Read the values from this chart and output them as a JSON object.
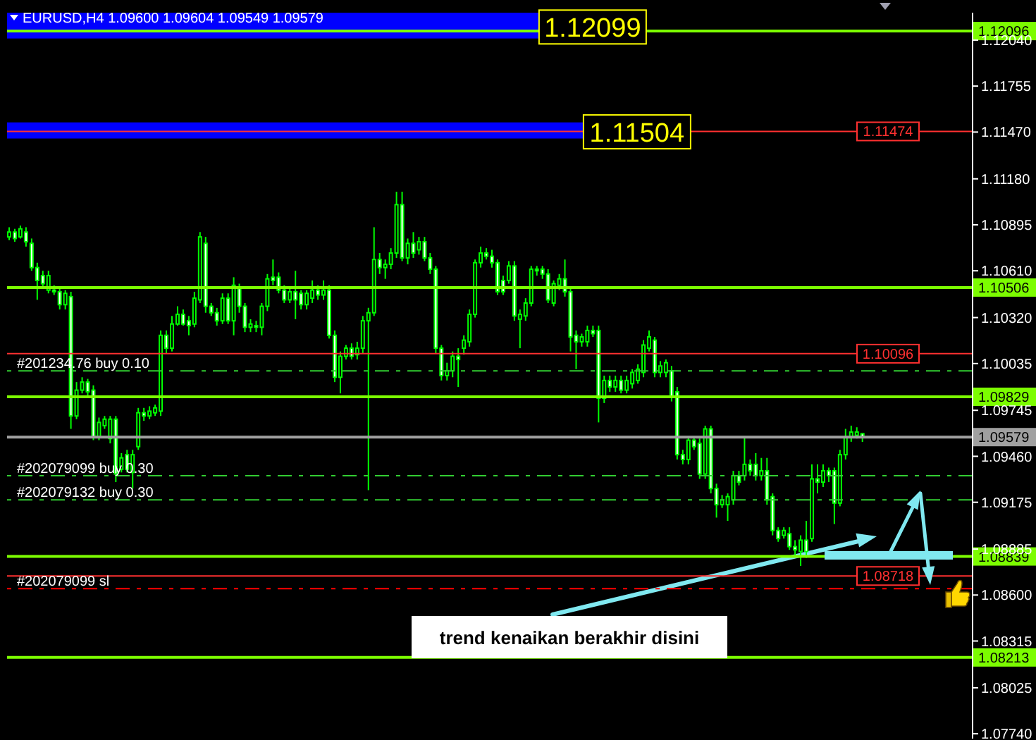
{
  "chart_data": {
    "type": "candlestick",
    "title": "EURUSD,H4 1.09600 1.09604 1.09549 1.09579",
    "annotations": [
      "trend kenaikan berakhir disini"
    ],
    "categories": [
      null,
      null,
      null,
      null,
      null,
      null,
      null,
      null,
      null,
      null,
      null,
      null,
      null,
      null,
      null,
      null,
      null,
      null,
      null,
      null,
      null,
      null,
      null,
      null,
      null,
      null,
      null,
      null,
      null,
      null,
      null,
      null,
      null,
      null,
      null,
      null,
      null,
      null,
      null,
      null,
      null,
      null,
      null,
      null,
      null,
      null,
      null,
      null,
      null,
      null,
      null,
      null,
      null,
      null,
      null,
      null,
      null,
      null,
      null,
      null,
      null,
      null,
      null,
      null,
      null,
      null,
      null,
      null,
      null,
      null,
      null,
      null,
      null,
      null,
      null,
      null,
      null,
      null,
      null,
      null,
      null,
      null,
      null,
      null,
      null,
      null,
      null,
      null,
      null,
      null,
      null,
      null,
      null,
      null,
      null,
      null,
      null,
      null,
      null,
      null,
      null,
      null,
      null,
      null,
      null,
      null,
      null,
      null,
      null,
      null,
      null,
      null,
      null,
      null,
      null,
      null,
      null,
      null,
      null,
      null,
      null,
      null,
      null,
      null,
      null,
      null,
      null,
      null,
      null,
      null,
      null,
      null,
      null,
      null,
      null,
      null,
      null,
      null,
      null,
      null,
      null,
      null,
      null,
      null,
      null,
      null,
      null,
      null,
      null,
      null,
      null,
      null,
      null,
      null,
      null,
      null,
      null,
      null,
      null,
      null,
      null,
      null,
      null,
      null,
      null,
      null,
      null,
      null,
      null,
      null,
      null,
      null
    ],
    "ohlc": [
      [
        1.1082,
        1.1088,
        1.108,
        1.1085
      ],
      [
        1.1085,
        1.1087,
        1.1079,
        1.1081
      ],
      [
        1.1082,
        1.1089,
        1.1081,
        1.1087
      ],
      [
        1.1085,
        1.1088,
        1.1076,
        1.1079
      ],
      [
        1.1078,
        1.1081,
        1.1061,
        1.1063
      ],
      [
        1.1063,
        1.1066,
        1.1043,
        1.1055
      ],
      [
        1.1058,
        1.1061,
        1.105,
        1.1053
      ],
      [
        1.1049,
        1.1061,
        1.1047,
        1.1058
      ],
      [
        1.1049,
        1.1052,
        1.1046,
        1.1048
      ],
      [
        1.1048,
        1.105,
        1.1037,
        1.104
      ],
      [
        1.104,
        1.1049,
        1.1037,
        1.1047
      ],
      [
        1.1045,
        1.1048,
        1.0963,
        1.0971
      ],
      [
        1.0971,
        1.0992,
        1.0969,
        1.0987
      ],
      [
        1.0987,
        1.0995,
        1.0985,
        1.0992
      ],
      [
        1.0992,
        1.0994,
        1.0983,
        1.0986
      ],
      [
        1.0987,
        1.099,
        1.0956,
        1.0958
      ],
      [
        1.0958,
        1.097,
        1.0956,
        1.0967
      ],
      [
        1.0965,
        1.0971,
        1.0963,
        1.0969
      ],
      [
        1.0957,
        1.0971,
        1.0954,
        1.0969
      ],
      [
        1.0969,
        1.0971,
        1.093,
        1.0935
      ],
      [
        1.0938,
        1.0948,
        1.0936,
        1.0945
      ],
      [
        1.0947,
        1.095,
        1.0936,
        1.0938
      ],
      [
        1.0936,
        1.095,
        1.0926,
        1.0947
      ],
      [
        1.0952,
        1.0976,
        1.095,
        1.0973
      ],
      [
        1.0973,
        1.0976,
        1.0968,
        1.0971
      ],
      [
        1.0971,
        1.0977,
        1.0969,
        1.0974
      ],
      [
        1.0973,
        1.0978,
        1.0971,
        1.0976
      ],
      [
        1.0974,
        1.1024,
        1.0971,
        1.1021
      ],
      [
        1.1021,
        1.1024,
        1.101,
        1.1013
      ],
      [
        1.1013,
        1.1033,
        1.1011,
        1.1028
      ],
      [
        1.1028,
        1.1039,
        1.1027,
        1.1034
      ],
      [
        1.1034,
        1.1037,
        1.1027,
        1.1028
      ],
      [
        1.103,
        1.1033,
        1.1021,
        1.1027
      ],
      [
        1.1028,
        1.1048,
        1.1026,
        1.1044
      ],
      [
        1.1043,
        1.1085,
        1.1041,
        1.1082
      ],
      [
        1.1078,
        1.1082,
        1.1035,
        1.1039
      ],
      [
        1.1039,
        1.1041,
        1.1033,
        1.1035
      ],
      [
        1.1035,
        1.1038,
        1.1027,
        1.103
      ],
      [
        1.103,
        1.1047,
        1.1028,
        1.1044
      ],
      [
        1.1044,
        1.1047,
        1.1028,
        1.103
      ],
      [
        1.103,
        1.1057,
        1.1021,
        1.1052
      ],
      [
        1.105,
        1.1053,
        1.1035,
        1.1039
      ],
      [
        1.1039,
        1.1041,
        1.1023,
        1.1026
      ],
      [
        1.1026,
        1.1031,
        1.1023,
        1.1028
      ],
      [
        1.1027,
        1.103,
        1.1023,
        1.1026
      ],
      [
        1.1026,
        1.1041,
        1.1021,
        1.1039
      ],
      [
        1.1039,
        1.1059,
        1.1036,
        1.1056
      ],
      [
        1.1057,
        1.1068,
        1.1052,
        1.1055
      ],
      [
        1.1057,
        1.106,
        1.1047,
        1.1049
      ],
      [
        1.1049,
        1.1052,
        1.1041,
        1.1043
      ],
      [
        1.1043,
        1.105,
        1.1041,
        1.1048
      ],
      [
        1.1048,
        1.1061,
        1.1031,
        1.1043
      ],
      [
        1.1047,
        1.1049,
        1.1037,
        1.104
      ],
      [
        1.104,
        1.1049,
        1.1037,
        1.1047
      ],
      [
        1.1044,
        1.1055,
        1.1041,
        1.1049
      ],
      [
        1.1049,
        1.1052,
        1.1043,
        1.1046
      ],
      [
        1.1046,
        1.1055,
        1.1043,
        1.1049
      ],
      [
        1.1049,
        1.1052,
        1.1019,
        1.1021
      ],
      [
        1.1021,
        1.1024,
        1.0992,
        1.0995
      ],
      [
        1.0995,
        1.1011,
        1.0985,
        1.1008
      ],
      [
        1.1008,
        1.1015,
        1.1006,
        1.1013
      ],
      [
        1.1013,
        1.1016,
        1.1006,
        1.1008
      ],
      [
        1.1009,
        1.1017,
        1.1006,
        1.1013
      ],
      [
        1.1013,
        1.1033,
        1.101,
        1.103
      ],
      [
        1.103,
        1.1038,
        1.0925,
        1.1035
      ],
      [
        1.1035,
        1.1088,
        1.1033,
        1.1068
      ],
      [
        1.1068,
        1.1072,
        1.1059,
        1.1063
      ],
      [
        1.1063,
        1.1068,
        1.1056,
        1.1065
      ],
      [
        1.1065,
        1.1075,
        1.1062,
        1.1072
      ],
      [
        1.1072,
        1.111,
        1.1069,
        1.1102
      ],
      [
        1.1102,
        1.111,
        1.1067,
        1.1069
      ],
      [
        1.1069,
        1.1081,
        1.1065,
        1.1078
      ],
      [
        1.1078,
        1.1085,
        1.1069,
        1.1072
      ],
      [
        1.1074,
        1.1082,
        1.1071,
        1.1079
      ],
      [
        1.1079,
        1.1082,
        1.1067,
        1.1069
      ],
      [
        1.1069,
        1.1072,
        1.1059,
        1.1062
      ],
      [
        1.1062,
        1.1064,
        1.101,
        1.1013
      ],
      [
        1.1013,
        1.1015,
        1.0993,
        1.0996
      ],
      [
        1.0996,
        1.1004,
        1.0993,
        1.0999
      ],
      [
        1.0999,
        1.1011,
        1.0995,
        1.1008
      ],
      [
        1.1008,
        1.1013,
        1.0989,
        1.1006
      ],
      [
        1.1013,
        1.1021,
        1.1009,
        1.1018
      ],
      [
        1.1017,
        1.1037,
        1.1014,
        1.1034
      ],
      [
        1.1034,
        1.1068,
        1.1032,
        1.1066
      ],
      [
        1.1066,
        1.1076,
        1.1063,
        1.1072
      ],
      [
        1.1072,
        1.1075,
        1.1068,
        1.107
      ],
      [
        1.107,
        1.1074,
        1.1063,
        1.1066
      ],
      [
        1.1066,
        1.1068,
        1.1046,
        1.1048
      ],
      [
        1.1055,
        1.1058,
        1.1046,
        1.1048
      ],
      [
        1.1055,
        1.1067,
        1.1053,
        1.1064
      ],
      [
        1.1064,
        1.1067,
        1.103,
        1.1033
      ],
      [
        1.1031,
        1.1037,
        1.1013,
        1.1034
      ],
      [
        1.1033,
        1.1044,
        1.103,
        1.1041
      ],
      [
        1.1041,
        1.1064,
        1.1039,
        1.1062
      ],
      [
        1.1062,
        1.1064,
        1.1058,
        1.1061
      ],
      [
        1.1062,
        1.1064,
        1.1056,
        1.1059
      ],
      [
        1.1059,
        1.1062,
        1.1041,
        1.1043
      ],
      [
        1.1041,
        1.1055,
        1.1039,
        1.1053
      ],
      [
        1.1052,
        1.1059,
        1.1049,
        1.1056
      ],
      [
        1.1056,
        1.1068,
        1.1045,
        1.1048
      ],
      [
        1.1048,
        1.1051,
        1.1011,
        1.102
      ],
      [
        1.1021,
        1.1024,
        1.1,
        1.1017
      ],
      [
        1.1017,
        1.1022,
        1.1014,
        1.102
      ],
      [
        1.1017,
        1.1027,
        1.1014,
        1.1024
      ],
      [
        1.1024,
        1.1027,
        1.102,
        1.1022
      ],
      [
        1.1024,
        1.1027,
        1.0967,
        1.0982
      ],
      [
        1.0982,
        1.0996,
        1.0979,
        1.0993
      ],
      [
        1.0993,
        1.0996,
        1.0986,
        1.0989
      ],
      [
        1.0989,
        1.0996,
        1.0986,
        1.0993
      ],
      [
        1.0993,
        1.0996,
        1.0985,
        1.0987
      ],
      [
        1.0987,
        1.0996,
        1.0985,
        1.0993
      ],
      [
        1.0991,
        1.1,
        1.0988,
        1.0998
      ],
      [
        1.0993,
        1.1003,
        1.0991,
        1.1
      ],
      [
        1.0998,
        1.1018,
        1.0995,
        1.1015
      ],
      [
        1.1013,
        1.1024,
        1.1011,
        1.102
      ],
      [
        1.1018,
        1.102,
        1.0995,
        1.0998
      ],
      [
        1.0998,
        1.1005,
        1.0995,
        1.1002
      ],
      [
        1.0998,
        1.1006,
        1.0995,
        1.1004
      ],
      [
        1.0999,
        1.1002,
        1.098,
        1.0983
      ],
      [
        1.0986,
        1.0989,
        1.0944,
        1.0947
      ],
      [
        1.0947,
        1.095,
        1.0941,
        1.0944
      ],
      [
        1.0944,
        1.0958,
        1.0941,
        1.0956
      ],
      [
        1.0956,
        1.0958,
        1.095,
        1.0952
      ],
      [
        1.0954,
        1.0957,
        1.0932,
        1.0935
      ],
      [
        1.0935,
        1.0965,
        1.0932,
        1.0963
      ],
      [
        1.0963,
        1.0965,
        1.0923,
        1.0926
      ],
      [
        1.0926,
        1.0929,
        1.0908,
        1.0916
      ],
      [
        1.0916,
        1.0922,
        1.0914,
        1.0919
      ],
      [
        1.0916,
        1.0923,
        1.0906,
        1.0921
      ],
      [
        1.0919,
        1.0937,
        1.0916,
        1.0934
      ],
      [
        1.0934,
        1.0937,
        1.0928,
        1.093
      ],
      [
        1.0934,
        1.0958,
        1.0931,
        1.0941
      ],
      [
        1.0941,
        1.0944,
        1.0934,
        1.0937
      ],
      [
        1.0941,
        1.0948,
        1.0931,
        1.0934
      ],
      [
        1.0934,
        1.0945,
        1.0931,
        1.0937
      ],
      [
        1.0937,
        1.0945,
        1.0916,
        1.0919
      ],
      [
        1.0921,
        1.0923,
        1.0897,
        1.09
      ],
      [
        1.09,
        1.0902,
        1.0893,
        1.0895
      ],
      [
        1.0897,
        1.0902,
        1.0895,
        1.09
      ],
      [
        1.0898,
        1.0902,
        1.0888,
        1.089
      ],
      [
        1.089,
        1.0894,
        1.0884,
        1.0888
      ],
      [
        1.0887,
        1.0897,
        1.0878,
        1.0894
      ],
      [
        1.0894,
        1.0906,
        1.0883,
        1.0887
      ],
      [
        1.0895,
        1.0941,
        1.0893,
        1.0932
      ],
      [
        1.0932,
        1.0941,
        1.0923,
        1.093
      ],
      [
        1.093,
        1.0941,
        1.0927,
        1.0937
      ],
      [
        1.0937,
        1.0939,
        1.093,
        1.0934
      ],
      [
        1.0937,
        1.0939,
        1.0904,
        1.0917
      ],
      [
        1.0917,
        1.095,
        1.0915,
        1.0947
      ],
      [
        1.0947,
        1.0963,
        1.0944,
        1.0958
      ],
      [
        1.0958,
        1.0965,
        1.0955,
        1.0961
      ],
      [
        1.0959,
        1.0964,
        1.0957,
        1.0961
      ],
      [
        1.096,
        1.09604,
        1.09549,
        1.09579
      ],
      null,
      null,
      null,
      null,
      null,
      null,
      null,
      null,
      null,
      null,
      null,
      null,
      null,
      null,
      null,
      null,
      null,
      null,
      null
    ],
    "color": "#00ff00",
    "ylim": [
      1.0771,
      1.1221
    ],
    "yticks": [
      {
        "value": 1.1204,
        "label": "1.12040"
      },
      1.11755,
      {
        "value": 1.1147,
        "label": "1.11470"
      },
      {
        "value": 1.1118,
        "label": "1.11180"
      },
      1.10895,
      {
        "value": 1.1061,
        "label": "1.10610"
      },
      {
        "value": 1.1032,
        "label": "1.10320"
      },
      1.10035,
      1.09745,
      {
        "value": 1.0946,
        "label": "1.09460"
      },
      1.09175,
      1.08885,
      {
        "value": 1.086,
        "label": "1.08600"
      },
      1.08315,
      1.08025,
      {
        "value": 1.0774,
        "label": "1.07740"
      }
    ],
    "tick_labels": "y",
    "bands": [
      {
        "axis": "y",
        "from": 1.1205,
        "to": 1.1221,
        "label": "1.12099",
        "color": "#0000ff"
      },
      {
        "axis": "y",
        "from": 1.1143,
        "to": 1.1153,
        "label": "1.11504",
        "color": "#0000ff"
      }
    ],
    "ref_lines": [
      {
        "axis": "y",
        "value": 1.12096,
        "label": "1.12096",
        "color": "#7cfc00"
      },
      {
        "axis": "y",
        "value": 1.10506,
        "label": "1.10506",
        "color": "#7cfc00"
      },
      {
        "axis": "y",
        "value": 1.09829,
        "label": "1.09829",
        "color": "#7cfc00"
      },
      {
        "axis": "y",
        "value": 1.08839,
        "label": "1.08839",
        "color": "#7cfc00"
      },
      {
        "axis": "y",
        "value": 1.08213,
        "label": "1.08213",
        "color": "#7cfc00"
      },
      {
        "axis": "y",
        "value": 1.09579,
        "label": "1.09579",
        "color": "#a0a0a0"
      },
      {
        "axis": "y",
        "value": 1.11474,
        "label": "1.11474",
        "color": "#ff3030"
      },
      {
        "axis": "y",
        "value": 1.10096,
        "label": "1.10096",
        "color": "#ff3030"
      },
      {
        "axis": "y",
        "value": 1.08718,
        "label": "1.08718",
        "color": "#ff3030"
      },
      {
        "axis": "y",
        "value": 1.0999,
        "label": "#201234.76 buy 0.10",
        "color": "#32cd32",
        "line_style": "dashed"
      },
      {
        "axis": "y",
        "value": 1.0934,
        "label": "#202079099 buy 0.30",
        "color": "#32cd32",
        "line_style": "dashed"
      },
      {
        "axis": "y",
        "value": 1.0919,
        "label": "#202079132 buy 0.30",
        "color": "#32cd32",
        "line_style": "dashed"
      },
      {
        "axis": "y",
        "value": 1.0864,
        "label": "#202079099 sl",
        "color": "#ff0000",
        "line_style": "dashed"
      }
    ]
  }
}
